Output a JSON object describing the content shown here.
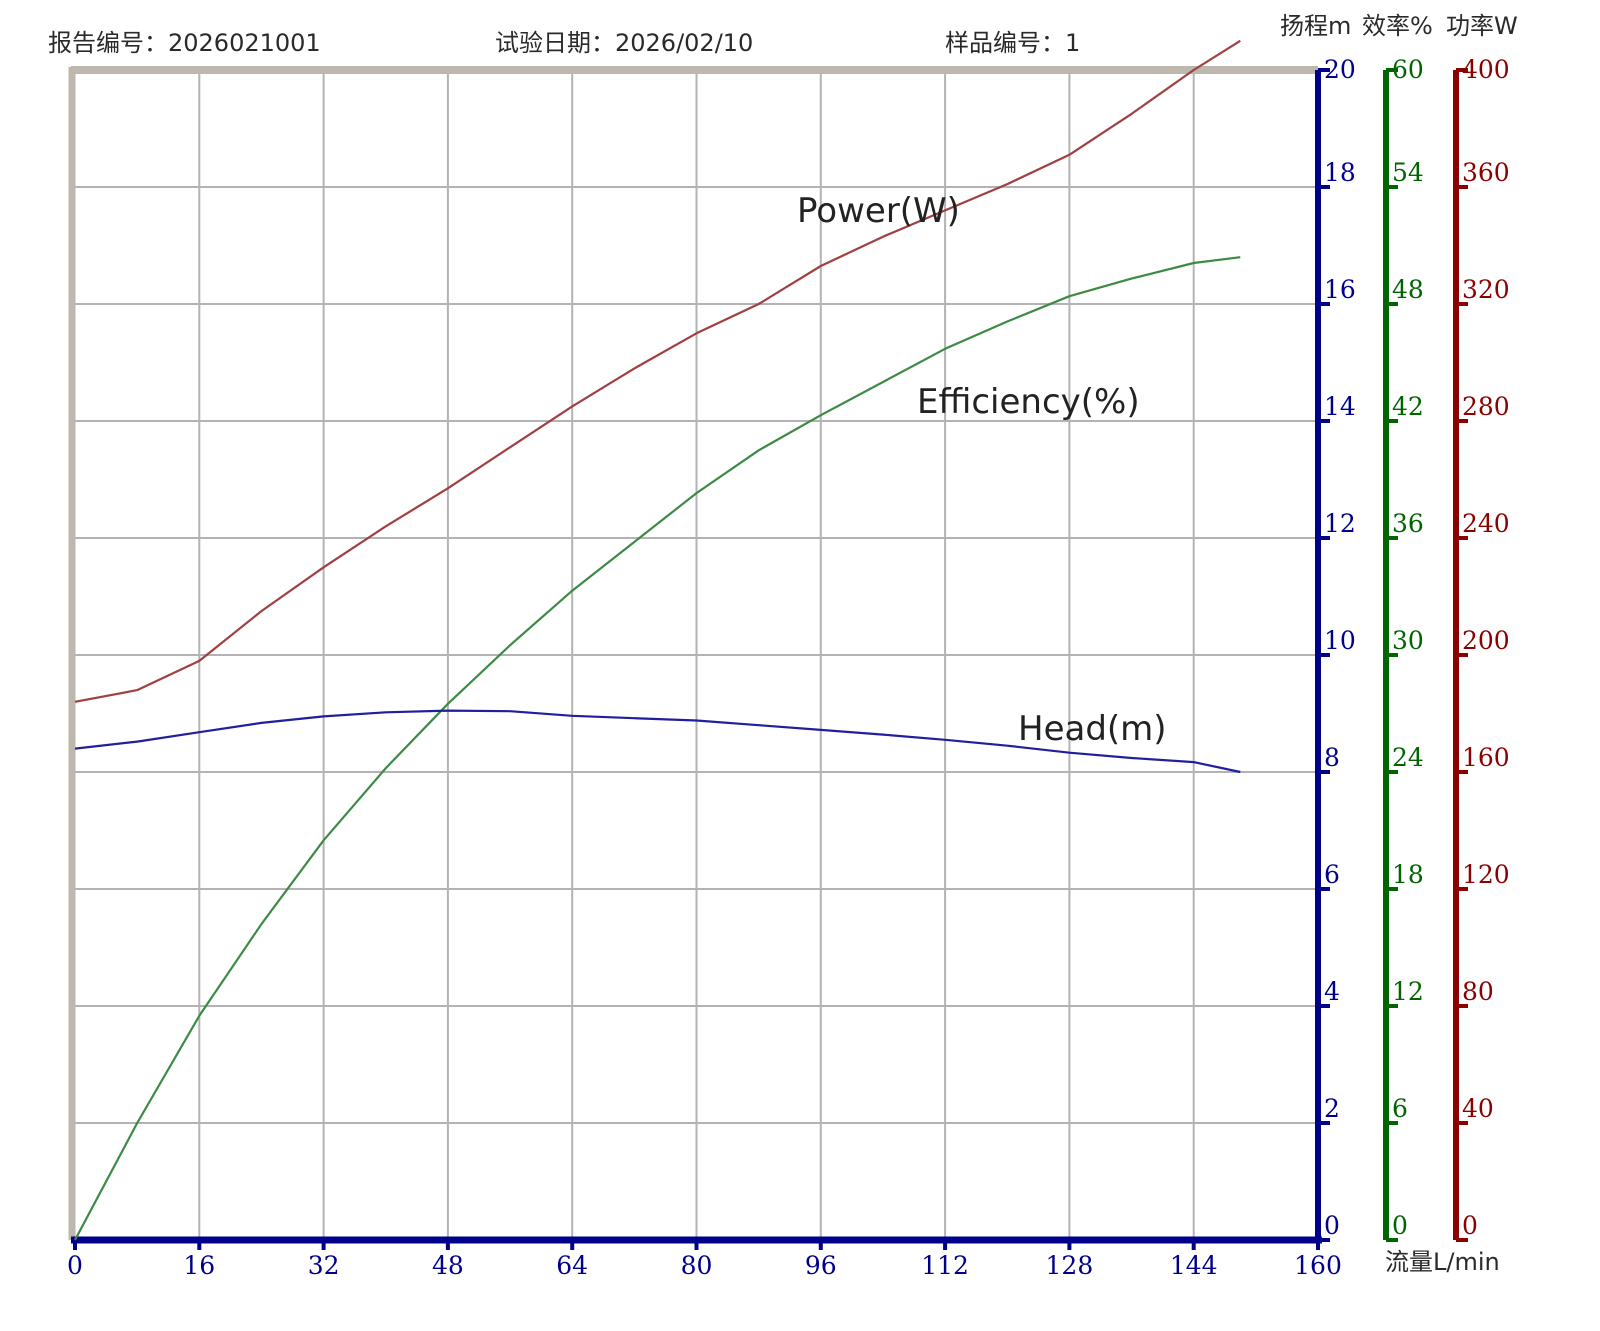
{
  "header": {
    "report_no": "报告编号：2026021001",
    "test_date": "试验日期：2026/02/10",
    "sample_no": "样品编号：1"
  },
  "colors": {
    "frame": "#bdb7ad",
    "grid": "#b3b3b3",
    "head": "#1f1f9f",
    "efficiency": "#3d8a45",
    "power": "#a04040",
    "head_axis": "#00008b",
    "eff_axis": "#006400",
    "power_axis": "#8b0000"
  },
  "chart_data": {
    "type": "line",
    "xlabel": "流量L/min",
    "x_ticks": [
      0,
      16,
      32,
      48,
      64,
      80,
      96,
      112,
      128,
      144,
      160
    ],
    "xlim": [
      0,
      160
    ],
    "grid": true,
    "axes": [
      {
        "id": "head",
        "label": "扬程m",
        "range": [
          0,
          20
        ],
        "ticks": [
          0,
          2,
          4,
          6,
          8,
          10,
          12,
          14,
          16,
          18,
          20
        ]
      },
      {
        "id": "efficiency",
        "label": "效率%",
        "range": [
          0,
          60
        ],
        "ticks": [
          0,
          6,
          12,
          18,
          24,
          30,
          36,
          42,
          48,
          54,
          60
        ]
      },
      {
        "id": "power",
        "label": "功率W",
        "range": [
          0,
          400
        ],
        "ticks": [
          0,
          40,
          80,
          120,
          160,
          200,
          240,
          280,
          320,
          360,
          400
        ]
      }
    ],
    "series": [
      {
        "name": "Power(W)",
        "axis": "power",
        "x": [
          0,
          8,
          16,
          24,
          32,
          40,
          48,
          56,
          64,
          72,
          80,
          88,
          96,
          104,
          112,
          120,
          128,
          136,
          144,
          150
        ],
        "y": [
          184,
          188,
          198,
          215,
          230,
          244,
          257,
          271,
          285,
          298,
          310,
          320,
          333,
          343,
          352,
          361,
          371,
          385,
          400,
          410
        ]
      },
      {
        "name": "Efficiency(%)",
        "axis": "efficiency",
        "x": [
          0,
          8,
          16,
          24,
          32,
          40,
          48,
          56,
          64,
          72,
          80,
          88,
          96,
          104,
          112,
          120,
          128,
          136,
          144,
          150
        ],
        "y": [
          0,
          6,
          11.5,
          16.2,
          20.5,
          24.2,
          27.5,
          30.5,
          33.3,
          35.8,
          38.3,
          40.5,
          42.3,
          44,
          45.7,
          47.1,
          48.4,
          49.3,
          50.1,
          50.4
        ]
      },
      {
        "name": "Head(m)",
        "axis": "head",
        "x": [
          0,
          8,
          16,
          24,
          32,
          40,
          48,
          56,
          64,
          72,
          80,
          88,
          96,
          104,
          112,
          120,
          128,
          136,
          144,
          150
        ],
        "y": [
          8.4,
          8.52,
          8.68,
          8.84,
          8.95,
          9.02,
          9.05,
          9.04,
          8.96,
          8.92,
          8.88,
          8.8,
          8.72,
          8.64,
          8.55,
          8.45,
          8.33,
          8.24,
          8.17,
          8
        ]
      }
    ]
  }
}
